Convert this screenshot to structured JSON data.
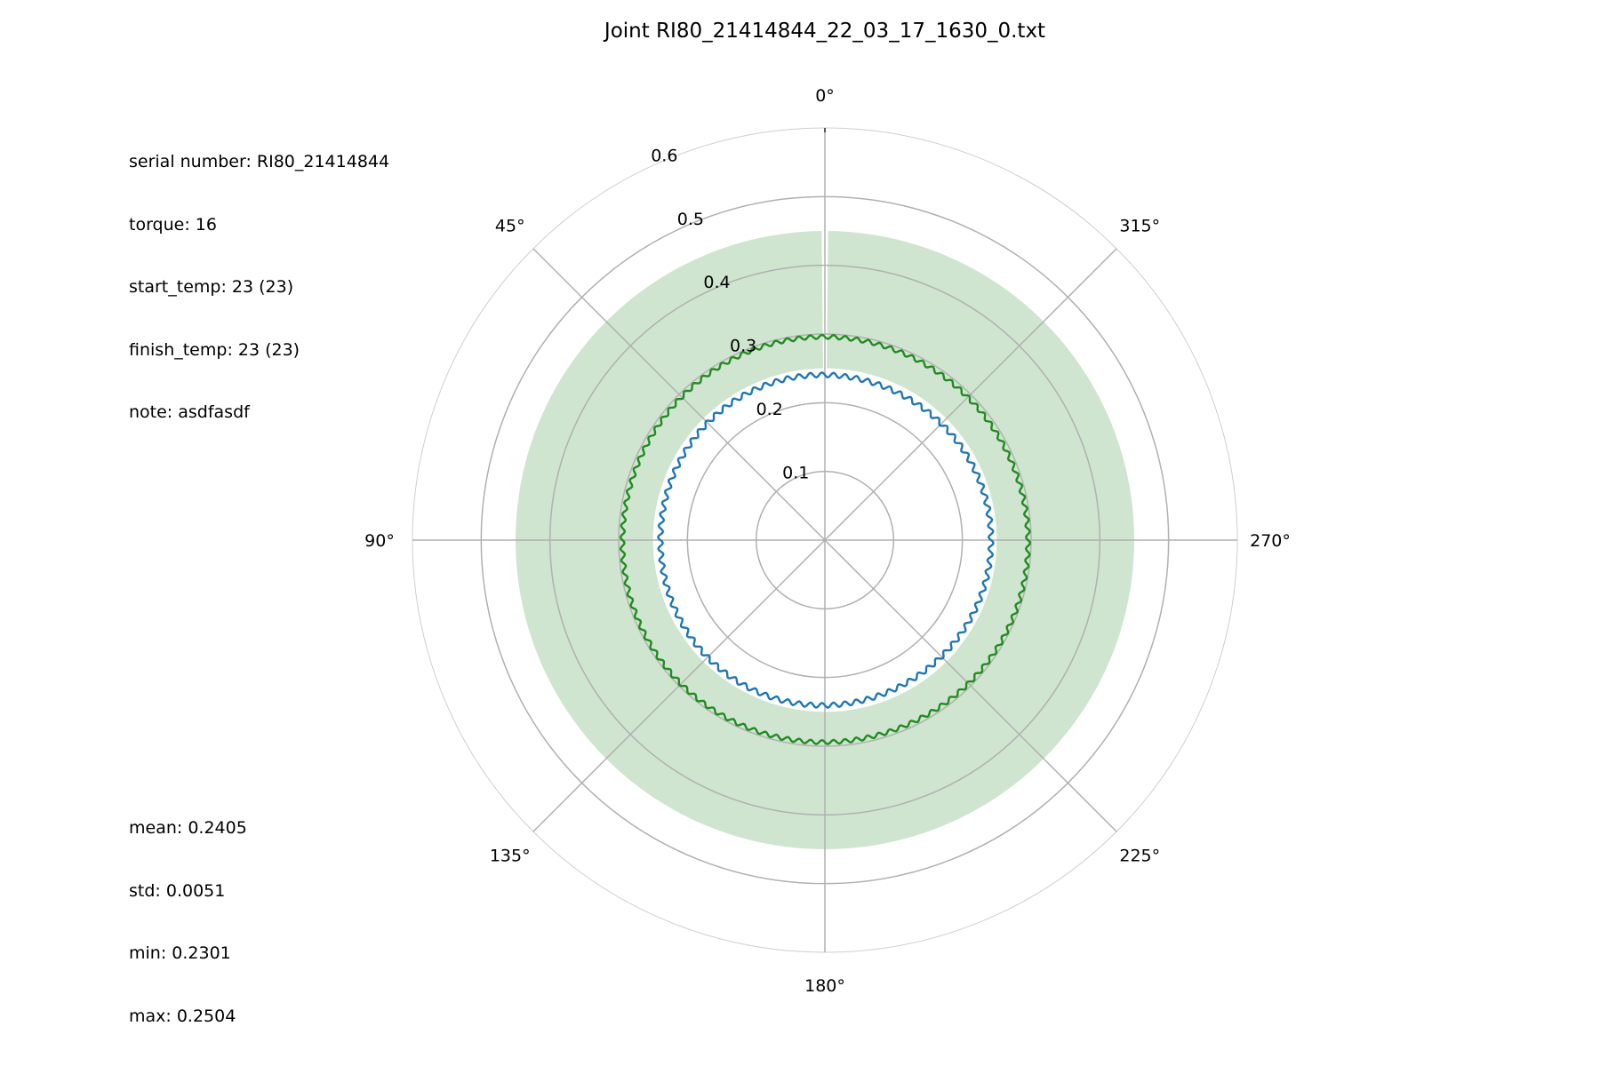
{
  "chart_data": {
    "type": "polar-line",
    "title": "Joint RI80_21414844_22_03_17_1630_0.txt",
    "theta_direction": "counterclockwise",
    "theta_zero": "top",
    "theta_ticks": [
      "0°",
      "45°",
      "90°",
      "135°",
      "180°",
      "225°",
      "270°",
      "315°"
    ],
    "r_ticks": [
      "0.1",
      "0.2",
      "0.3",
      "0.4",
      "0.5",
      "0.6"
    ],
    "r_range": [
      0,
      0.6
    ],
    "band": {
      "r_inner": 0.25,
      "r_outer": 0.45,
      "gap_at_degrees": 0,
      "color": "#cfe5cf"
    },
    "series": [
      {
        "color": "#1f77b4",
        "mean": 0.2405,
        "ripple": 0.0035,
        "ripple_cycles": 90
      },
      {
        "color": "#228b22",
        "mean": 0.295,
        "ripple": 0.003,
        "ripple_cycles": 110
      }
    ]
  },
  "info_top": [
    "serial number: RI80_21414844",
    "torque: 16",
    "start_temp: 23 (23)",
    "finish_temp: 23 (23)",
    "note: asdfasdf"
  ],
  "info_bottom": [
    "mean: 0.2405",
    "std: 0.0051",
    "min: 0.2301",
    "max: 0.2504"
  ]
}
